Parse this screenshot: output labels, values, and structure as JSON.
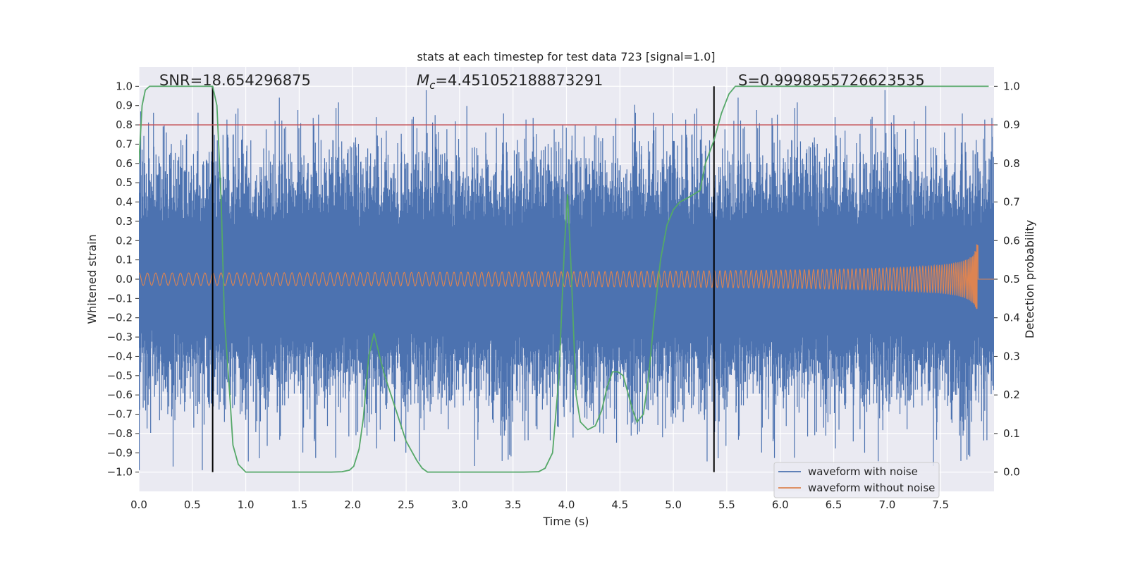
{
  "chart_data": {
    "type": "line",
    "title": "stats at each timestep for test data 723 [signal=1.0]",
    "xlabel": "Time (s)",
    "ylabel": "Whitened strain",
    "y2label": "Detection probability",
    "xlim": [
      0,
      8.0
    ],
    "ylim": [
      -1.1,
      1.1
    ],
    "y2lim": [
      -0.05,
      1.05
    ],
    "grid": true,
    "x_ticks": [
      "0.0",
      "0.5",
      "1.0",
      "1.5",
      "2.0",
      "2.5",
      "3.0",
      "3.5",
      "4.0",
      "4.5",
      "5.0",
      "5.5",
      "6.0",
      "6.5",
      "7.0",
      "7.5"
    ],
    "y_ticks": [
      "1.0",
      "0.9",
      "0.8",
      "0.7",
      "0.6",
      "0.5",
      "0.4",
      "0.3",
      "0.2",
      "0.1",
      "0.0",
      "−0.1",
      "−0.2",
      "−0.3",
      "−0.4",
      "−0.5",
      "−0.6",
      "−0.7",
      "−0.8",
      "−0.9",
      "−1.0"
    ],
    "y2_ticks": [
      "1.0",
      "0.9",
      "0.8",
      "0.7",
      "0.6",
      "0.5",
      "0.4",
      "0.3",
      "0.2",
      "0.1",
      "0.0"
    ],
    "annotations": {
      "snr": "SNR=18.654296875",
      "mc_symbol": "M",
      "mc_sub": "c",
      "mc_value": "=4.451052188873291",
      "s": "S=0.9998955726623535"
    },
    "threshold_y2": 0.9,
    "vlines_x": [
      0.69,
      5.38
    ],
    "merger_time": 7.85,
    "noise_amplitude": 0.38,
    "series": [
      {
        "name": "waveform with noise",
        "color": "#4c72b0"
      },
      {
        "name": "waveform without noise",
        "color": "#dd8452"
      },
      {
        "name": "detection probability",
        "color": "#55a868",
        "x": [
          0.0,
          0.03,
          0.06,
          0.1,
          0.13,
          0.2,
          0.4,
          0.6,
          0.69,
          0.73,
          0.77,
          0.8,
          0.85,
          0.88,
          0.93,
          1.0,
          1.5,
          1.8,
          1.9,
          1.97,
          2.01,
          2.06,
          2.1,
          2.15,
          2.2,
          2.27,
          2.3,
          2.5,
          2.6,
          2.65,
          2.7,
          2.8,
          3.0,
          3.6,
          3.74,
          3.8,
          3.87,
          3.93,
          3.98,
          4.01,
          4.04,
          4.09,
          4.13,
          4.2,
          4.27,
          4.33,
          4.38,
          4.43,
          4.48,
          4.53,
          4.58,
          4.62,
          4.66,
          4.72,
          4.77,
          4.82,
          4.88,
          4.94,
          5.0,
          5.06,
          5.13,
          5.19,
          5.25,
          5.3,
          5.38,
          5.45,
          5.52,
          5.58,
          5.65,
          5.73,
          6.0,
          7.0,
          7.95
        ],
        "y": [
          0.8,
          0.95,
          0.99,
          1.0,
          1.0,
          1.0,
          1.0,
          1.0,
          1.0,
          0.95,
          0.7,
          0.4,
          0.2,
          0.07,
          0.02,
          0.0,
          0.0,
          0.0,
          0.001,
          0.005,
          0.015,
          0.06,
          0.14,
          0.3,
          0.36,
          0.28,
          0.25,
          0.08,
          0.03,
          0.01,
          0.0,
          0.0,
          0.0,
          0.0,
          0.001,
          0.01,
          0.05,
          0.25,
          0.58,
          0.72,
          0.55,
          0.2,
          0.13,
          0.11,
          0.12,
          0.16,
          0.22,
          0.26,
          0.26,
          0.25,
          0.2,
          0.16,
          0.13,
          0.15,
          0.25,
          0.4,
          0.55,
          0.64,
          0.68,
          0.7,
          0.71,
          0.72,
          0.73,
          0.8,
          0.86,
          0.93,
          0.98,
          1.0,
          1.0,
          1.0,
          1.0,
          1.0,
          1.0
        ]
      }
    ],
    "threshold_color": "#c44e52",
    "vline_color": "#000000"
  }
}
